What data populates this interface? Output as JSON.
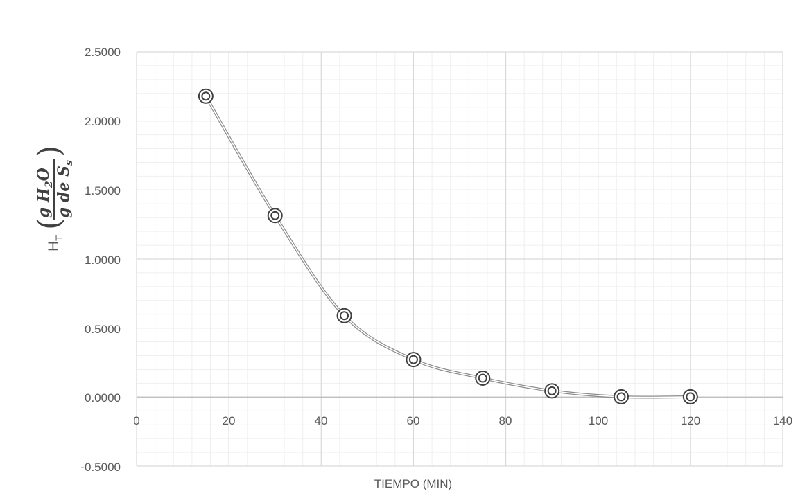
{
  "chart_data": {
    "type": "scatter",
    "title": "",
    "xlabel": "TIEMPO (MIN)",
    "ylabel": {
      "main": "H",
      "sub": "T",
      "numerator": "g H",
      "numerator_sub": "2",
      "numerator_tail": "O",
      "denominator": "g de S",
      "denominator_sub": "s"
    },
    "xlim": [
      0,
      140
    ],
    "ylim": [
      -0.5,
      2.5
    ],
    "x_ticks": [
      "0",
      "20",
      "40",
      "60",
      "80",
      "100",
      "120",
      "140"
    ],
    "y_ticks": [
      "2.5000",
      "2.0000",
      "1.5000",
      "1.0000",
      "0.5000",
      "0.0000",
      "-0.5000"
    ],
    "grid": true,
    "smooth_line": true,
    "series": [
      {
        "x": [
          15,
          30,
          45,
          60,
          75,
          90,
          105,
          120
        ],
        "y": [
          2.18,
          1.315,
          0.59,
          0.272,
          0.137,
          0.045,
          0.002,
          0.002
        ]
      }
    ],
    "colors": {
      "line": "#a6a6a6",
      "marker": "#404040",
      "grid_major": "#d9d9d9",
      "grid_minor": "#efefef"
    }
  }
}
